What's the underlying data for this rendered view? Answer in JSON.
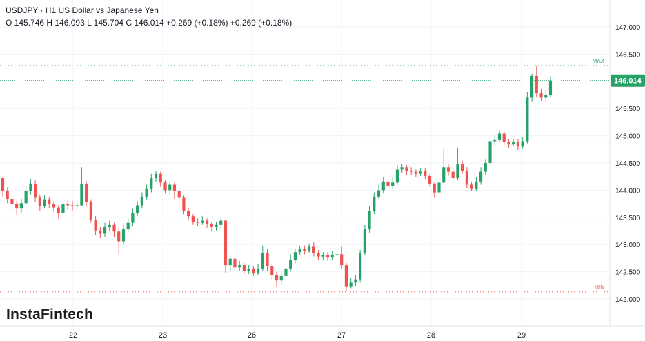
{
  "header": {
    "title": "USDJPY · H1 US Dollar vs Japanese Yen",
    "ohlc": "O 145.746 H 146.093 L 145.704 C 146.014 +0.269 (+0.18%) +0.269 (+0.18%)"
  },
  "watermark": "InstaFintech",
  "colors": {
    "up": "#26a269",
    "down": "#ef5350",
    "grid": "#f0f3fa",
    "price_tag": "#26a269"
  },
  "chart_data": {
    "type": "candlestick",
    "title": "USDJPY · H1 US Dollar vs Japanese Yen",
    "ylim": [
      141.6,
      147.5
    ],
    "y_ticks": [
      "147.000",
      "146.500",
      "146.000",
      "145.500",
      "145.000",
      "144.500",
      "144.000",
      "143.500",
      "143.000",
      "142.500",
      "142.000"
    ],
    "x_ticks": [
      "22",
      "23",
      "26",
      "27",
      "28",
      "29"
    ],
    "last_price": "146.014",
    "max_line": {
      "label": "MAX",
      "value": 146.29
    },
    "min_line": {
      "label": "MIN",
      "value": 142.13
    },
    "candles": [
      [
        144.22,
        143.98,
        144.23,
        143.88
      ],
      [
        143.98,
        143.84,
        144.05,
        143.76
      ],
      [
        143.84,
        143.74,
        143.9,
        143.6
      ],
      [
        143.74,
        143.66,
        143.8,
        143.55
      ],
      [
        143.66,
        143.76,
        143.84,
        143.58
      ],
      [
        143.76,
        143.98,
        144.08,
        143.72
      ],
      [
        143.98,
        144.12,
        144.2,
        143.92
      ],
      [
        144.12,
        143.86,
        144.18,
        143.78
      ],
      [
        143.86,
        143.7,
        143.92,
        143.62
      ],
      [
        143.7,
        143.82,
        143.9,
        143.66
      ],
      [
        143.82,
        143.74,
        143.88,
        143.67
      ],
      [
        143.74,
        143.68,
        143.8,
        143.6
      ],
      [
        143.68,
        143.58,
        143.72,
        143.48
      ],
      [
        143.58,
        143.74,
        143.8,
        143.52
      ],
      [
        143.74,
        143.72,
        143.82,
        143.64
      ],
      [
        143.72,
        143.7,
        143.8,
        143.62
      ],
      [
        143.7,
        143.72,
        143.78,
        143.64
      ],
      [
        143.72,
        144.12,
        144.42,
        143.7
      ],
      [
        144.12,
        143.78,
        144.16,
        143.7
      ],
      [
        143.78,
        143.46,
        143.82,
        143.4
      ],
      [
        143.46,
        143.26,
        143.52,
        143.18
      ],
      [
        143.26,
        143.2,
        143.32,
        143.12
      ],
      [
        143.2,
        143.32,
        143.4,
        143.14
      ],
      [
        143.32,
        143.36,
        143.44,
        143.24
      ],
      [
        143.36,
        143.24,
        143.4,
        143.14
      ],
      [
        143.24,
        143.06,
        143.3,
        142.82
      ],
      [
        143.06,
        143.28,
        143.36,
        143.0
      ],
      [
        143.28,
        143.4,
        143.48,
        143.22
      ],
      [
        143.4,
        143.58,
        143.66,
        143.34
      ],
      [
        143.58,
        143.72,
        143.8,
        143.52
      ],
      [
        143.72,
        143.88,
        143.96,
        143.66
      ],
      [
        143.88,
        144.02,
        144.1,
        143.82
      ],
      [
        144.02,
        144.22,
        144.3,
        143.96
      ],
      [
        144.22,
        144.3,
        144.36,
        144.16
      ],
      [
        144.3,
        144.14,
        144.34,
        144.06
      ],
      [
        144.14,
        144.0,
        144.18,
        143.94
      ],
      [
        144.0,
        144.1,
        144.16,
        143.92
      ],
      [
        144.1,
        143.98,
        144.14,
        143.84
      ],
      [
        143.98,
        143.86,
        144.02,
        143.8
      ],
      [
        143.86,
        143.62,
        143.9,
        143.56
      ],
      [
        143.62,
        143.52,
        143.66,
        143.46
      ],
      [
        143.52,
        143.42,
        143.56,
        143.36
      ],
      [
        143.42,
        143.4,
        143.48,
        143.34
      ],
      [
        143.4,
        143.44,
        143.52,
        143.36
      ],
      [
        143.44,
        143.38,
        143.48,
        143.3
      ],
      [
        143.38,
        143.32,
        143.42,
        143.24
      ],
      [
        143.32,
        143.36,
        143.42,
        143.26
      ],
      [
        143.36,
        143.44,
        143.48,
        143.3
      ],
      [
        143.44,
        142.62,
        143.46,
        142.48
      ],
      [
        142.62,
        142.74,
        142.8,
        142.52
      ],
      [
        142.74,
        142.58,
        142.78,
        142.48
      ],
      [
        142.58,
        142.62,
        142.7,
        142.52
      ],
      [
        142.62,
        142.52,
        142.66,
        142.46
      ],
      [
        142.52,
        142.56,
        142.62,
        142.46
      ],
      [
        142.56,
        142.48,
        142.6,
        142.42
      ],
      [
        142.48,
        142.56,
        142.64,
        142.44
      ],
      [
        142.56,
        142.84,
        142.98,
        142.52
      ],
      [
        142.84,
        142.6,
        142.92,
        142.52
      ],
      [
        142.6,
        142.44,
        142.66,
        142.36
      ],
      [
        142.44,
        142.34,
        142.5,
        142.22
      ],
      [
        142.34,
        142.42,
        142.5,
        142.26
      ],
      [
        142.42,
        142.56,
        142.64,
        142.36
      ],
      [
        142.56,
        142.72,
        142.82,
        142.5
      ],
      [
        142.72,
        142.86,
        142.92,
        142.66
      ],
      [
        142.86,
        142.92,
        142.98,
        142.8
      ],
      [
        142.92,
        142.88,
        142.98,
        142.82
      ],
      [
        142.88,
        142.96,
        143.02,
        142.84
      ],
      [
        142.96,
        142.84,
        143.04,
        142.78
      ],
      [
        142.84,
        142.78,
        142.9,
        142.72
      ],
      [
        142.78,
        142.8,
        142.86,
        142.72
      ],
      [
        142.8,
        142.76,
        142.86,
        142.7
      ],
      [
        142.76,
        142.8,
        142.88,
        142.72
      ],
      [
        142.8,
        142.82,
        142.88,
        142.76
      ],
      [
        142.82,
        142.62,
        142.96,
        142.56
      ],
      [
        142.62,
        142.22,
        142.66,
        142.14
      ],
      [
        142.22,
        142.3,
        142.38,
        142.2
      ],
      [
        142.3,
        142.36,
        142.44,
        142.24
      ],
      [
        142.36,
        142.84,
        142.9,
        142.3
      ],
      [
        142.84,
        143.28,
        143.36,
        142.8
      ],
      [
        143.28,
        143.62,
        143.7,
        143.22
      ],
      [
        143.62,
        143.88,
        143.96,
        143.56
      ],
      [
        143.88,
        144.0,
        144.1,
        143.84
      ],
      [
        144.0,
        144.16,
        144.24,
        143.94
      ],
      [
        144.16,
        144.08,
        144.22,
        144.0
      ],
      [
        144.08,
        144.14,
        144.24,
        144.02
      ],
      [
        144.14,
        144.38,
        144.46,
        144.1
      ],
      [
        144.38,
        144.42,
        144.48,
        144.32
      ],
      [
        144.42,
        144.36,
        144.46,
        144.28
      ],
      [
        144.36,
        144.34,
        144.42,
        144.28
      ],
      [
        144.34,
        144.3,
        144.38,
        144.24
      ],
      [
        144.3,
        144.36,
        144.4,
        144.26
      ],
      [
        144.36,
        144.26,
        144.4,
        144.2
      ],
      [
        144.26,
        144.12,
        144.3,
        144.06
      ],
      [
        144.12,
        143.96,
        144.14,
        143.86
      ],
      [
        143.96,
        144.14,
        144.22,
        143.92
      ],
      [
        144.14,
        144.42,
        144.76,
        144.1
      ],
      [
        144.42,
        144.34,
        144.48,
        144.26
      ],
      [
        144.34,
        144.22,
        144.42,
        144.14
      ],
      [
        144.22,
        144.48,
        144.78,
        144.18
      ],
      [
        144.48,
        144.36,
        144.54,
        144.3
      ],
      [
        144.36,
        144.1,
        144.42,
        144.04
      ],
      [
        144.1,
        144.02,
        144.16,
        143.98
      ],
      [
        144.02,
        144.16,
        144.24,
        143.98
      ],
      [
        144.16,
        144.34,
        144.42,
        144.1
      ],
      [
        144.34,
        144.5,
        144.56,
        144.28
      ],
      [
        144.5,
        144.9,
        144.96,
        144.46
      ],
      [
        144.9,
        144.92,
        145.02,
        144.82
      ],
      [
        144.92,
        145.04,
        145.1,
        144.88
      ],
      [
        145.04,
        144.88,
        145.08,
        144.82
      ],
      [
        144.88,
        144.84,
        144.94,
        144.78
      ],
      [
        144.84,
        144.88,
        144.94,
        144.8
      ],
      [
        144.88,
        144.8,
        144.94,
        144.74
      ],
      [
        144.8,
        144.9,
        144.98,
        144.76
      ],
      [
        144.9,
        145.7,
        145.8,
        144.86
      ],
      [
        145.7,
        146.1,
        146.14,
        145.62
      ],
      [
        146.1,
        145.78,
        146.29,
        145.7
      ],
      [
        145.78,
        145.7,
        145.86,
        145.64
      ],
      [
        145.7,
        145.746,
        145.84,
        145.62
      ],
      [
        145.746,
        146.014,
        146.093,
        145.704
      ]
    ]
  }
}
